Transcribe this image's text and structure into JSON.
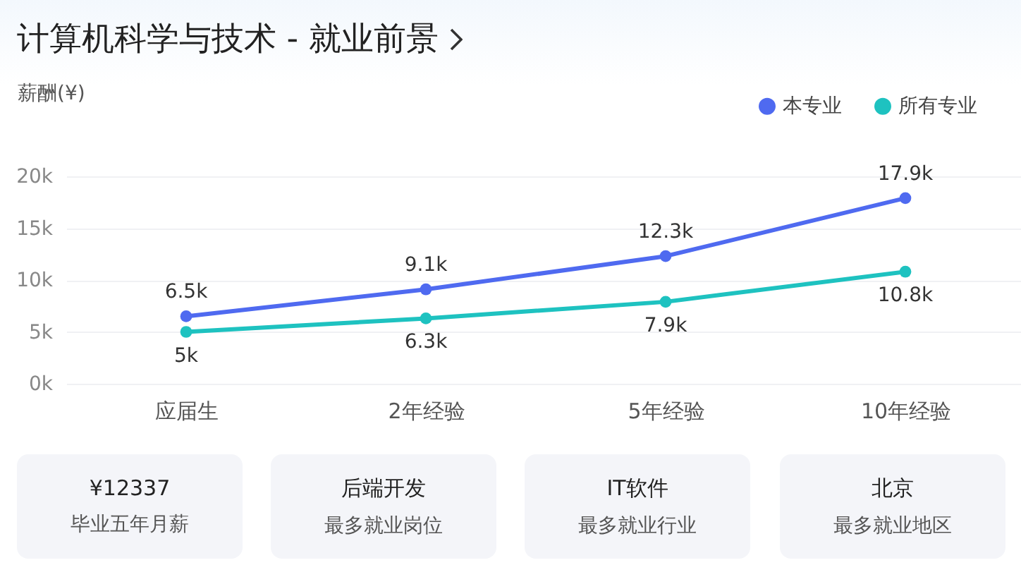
{
  "chart_data": [
    {
      "type": "line",
      "title": "计算机科学与技术 - 就业前景",
      "ylabel": "薪酬(¥)",
      "categories": [
        "应届生",
        "2年经验",
        "5年经验",
        "10年经验"
      ],
      "series": [
        {
          "name": "本专业",
          "color": "#4f6af0",
          "values": [
            6.5,
            9.1,
            12.3,
            17.9
          ],
          "value_labels": [
            "6.5k",
            "9.1k",
            "12.3k",
            "17.9k"
          ]
        },
        {
          "name": "所有专业",
          "color": "#1ec2c0",
          "values": [
            5,
            6.3,
            7.9,
            10.8
          ],
          "value_labels": [
            "5k",
            "6.3k",
            "7.9k",
            "10.8k"
          ]
        }
      ],
      "ylim": [
        0,
        20
      ],
      "yticks": [
        {
          "value": 0,
          "label": "0k"
        },
        {
          "value": 5,
          "label": "5k"
        },
        {
          "value": 10,
          "label": "10k"
        },
        {
          "value": 15,
          "label": "15k"
        },
        {
          "value": 20,
          "label": "20k"
        }
      ],
      "grid": "y",
      "legend": "top right",
      "marker": "circle",
      "line_style": "solid"
    },
    {
      "type": "other",
      "annotations": [
        "¥12337",
        "毕业五年月薪",
        "后端开发",
        "最多就业岗位",
        "IT软件",
        "最多就业行业",
        "北京",
        "最多就业地区"
      ]
    }
  ]
}
